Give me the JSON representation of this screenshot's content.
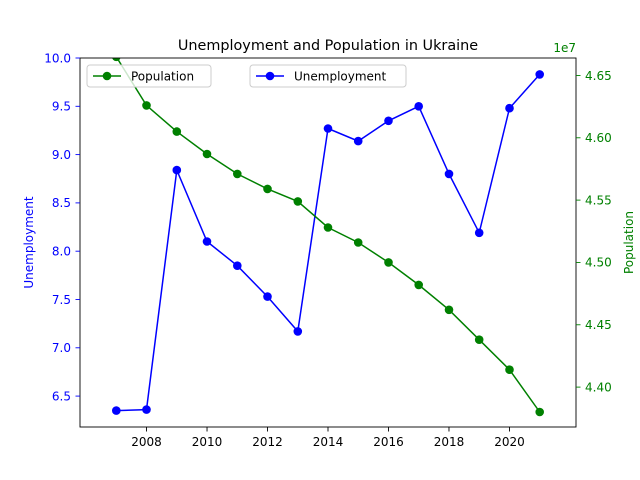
{
  "chart_data": {
    "type": "line",
    "title": "Unemployment and Population in Ukraine",
    "x": [
      2007,
      2008,
      2009,
      2010,
      2011,
      2012,
      2013,
      2014,
      2015,
      2016,
      2017,
      2018,
      2019,
      2020,
      2021
    ],
    "x_ticks": [
      2008,
      2010,
      2012,
      2014,
      2016,
      2018,
      2020
    ],
    "xlim": [
      2005.8,
      2022.2
    ],
    "left_axis": {
      "label": "Unemployment",
      "color": "#0000ff",
      "ylim": [
        6.18,
        10.0
      ],
      "ticks": [
        "6.5",
        "7.0",
        "7.5",
        "8.0",
        "8.5",
        "9.0",
        "9.5",
        "10.0"
      ]
    },
    "right_axis": {
      "label": "Population",
      "color": "#008000",
      "offset_text": "1e7",
      "ylim": [
        4.368,
        4.664
      ],
      "ticks": [
        "4.40",
        "4.45",
        "4.50",
        "4.55",
        "4.60",
        "4.65"
      ]
    },
    "series": [
      {
        "name": "Unemployment",
        "axis": "left",
        "color": "#0000ff",
        "values": [
          6.35,
          6.36,
          8.84,
          8.1,
          7.85,
          7.53,
          7.17,
          9.27,
          9.14,
          9.35,
          9.5,
          8.8,
          8.19,
          9.48,
          9.83
        ]
      },
      {
        "name": "Population",
        "axis": "right",
        "color": "#008000",
        "values": [
          4.665,
          4.626,
          4.605,
          4.587,
          4.571,
          4.559,
          4.549,
          4.528,
          4.516,
          4.5,
          4.482,
          4.462,
          4.438,
          4.414,
          4.38
        ]
      }
    ],
    "legends": [
      {
        "series": "Population",
        "placement": "upper-left"
      },
      {
        "series": "Unemployment",
        "placement": "upper-center"
      }
    ],
    "grid": false
  }
}
